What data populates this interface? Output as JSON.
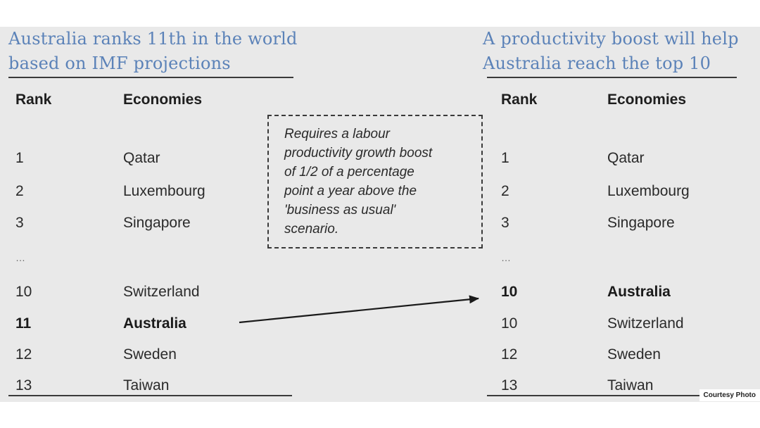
{
  "left": {
    "heading": [
      "Australia ranks 11th in the world",
      "based on IMF projections"
    ],
    "col_rank": "Rank",
    "col_economies": "Economies",
    "rows": [
      {
        "rank": "1",
        "economy": "Qatar"
      },
      {
        "rank": "2",
        "economy": "Luxembourg"
      },
      {
        "rank": "3",
        "economy": "Singapore"
      },
      {
        "rank": "…",
        "economy": ""
      },
      {
        "rank": "10",
        "economy": "Switzerland"
      },
      {
        "rank": "11",
        "economy": "Australia"
      },
      {
        "rank": "12",
        "economy": "Sweden"
      },
      {
        "rank": "13",
        "economy": "Taiwan"
      }
    ]
  },
  "right": {
    "heading": [
      "A productivity boost will help",
      "Australia reach the top 10"
    ],
    "col_rank": "Rank",
    "col_economies": "Economies",
    "rows": [
      {
        "rank": "1",
        "economy": "Qatar"
      },
      {
        "rank": "2",
        "economy": "Luxembourg"
      },
      {
        "rank": "3",
        "economy": "Singapore"
      },
      {
        "rank": "…",
        "economy": ""
      },
      {
        "rank": "10",
        "economy": "Australia"
      },
      {
        "rank": "10",
        "economy": "Switzerland"
      },
      {
        "rank": "12",
        "economy": "Sweden"
      },
      {
        "rank": "13",
        "economy": "Taiwan"
      }
    ]
  },
  "callout": {
    "lines": [
      "Requires a labour",
      "productivity growth boost",
      "of 1/2 of a percentage",
      "point a year above the",
      "'business as usual'",
      "scenario."
    ]
  },
  "credit": "Courtesy Photo",
  "colors": {
    "heading": "#5b82b8",
    "panel": "#e9e9e9"
  }
}
